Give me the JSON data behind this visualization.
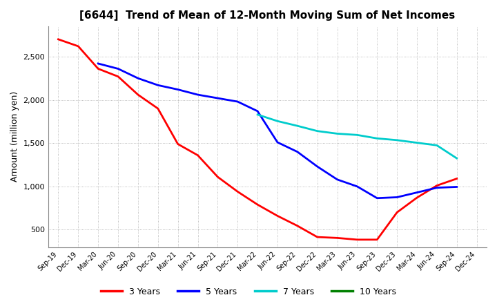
{
  "title": "[6644]  Trend of Mean of 12-Month Moving Sum of Net Incomes",
  "ylabel": "Amount (million yen)",
  "ylim": [
    300,
    2850
  ],
  "yticks": [
    500,
    1000,
    1500,
    2000,
    2500
  ],
  "background_color": "#ffffff",
  "grid_color": "#aaaaaa",
  "x_labels": [
    "Sep-19",
    "Dec-19",
    "Mar-20",
    "Jun-20",
    "Sep-20",
    "Dec-20",
    "Mar-21",
    "Jun-21",
    "Sep-21",
    "Dec-21",
    "Mar-22",
    "Jun-22",
    "Sep-22",
    "Dec-22",
    "Mar-23",
    "Jun-23",
    "Sep-23",
    "Dec-23",
    "Mar-24",
    "Jun-24",
    "Sep-24",
    "Dec-24"
  ],
  "series": {
    "3 Years": {
      "color": "#ff0000",
      "data_x": [
        0,
        1,
        2,
        3,
        4,
        5,
        6,
        7,
        8,
        9,
        10,
        11,
        12,
        13,
        14,
        15,
        16,
        17,
        18,
        19,
        20
      ],
      "data_y": [
        2700,
        2620,
        2360,
        2270,
        2060,
        1900,
        1490,
        1360,
        1110,
        940,
        790,
        660,
        545,
        415,
        405,
        385,
        385,
        700,
        870,
        1010,
        1090
      ]
    },
    "5 Years": {
      "color": "#0000ff",
      "data_x": [
        2,
        3,
        4,
        5,
        6,
        7,
        8,
        9,
        10,
        11,
        12,
        13,
        14,
        15,
        16,
        17,
        18,
        19,
        20
      ],
      "data_y": [
        2420,
        2360,
        2250,
        2170,
        2120,
        2060,
        2020,
        1980,
        1870,
        1510,
        1400,
        1230,
        1080,
        1000,
        865,
        875,
        930,
        985,
        995
      ]
    },
    "7 Years": {
      "color": "#00cccc",
      "data_x": [
        10,
        11,
        12,
        13,
        14,
        15,
        16,
        17,
        18,
        19,
        20
      ],
      "data_y": [
        1830,
        1755,
        1700,
        1640,
        1610,
        1595,
        1555,
        1535,
        1505,
        1475,
        1325
      ]
    },
    "10 Years": {
      "color": "#008000",
      "data_x": [],
      "data_y": []
    }
  },
  "legend_entries": [
    "3 Years",
    "5 Years",
    "7 Years",
    "10 Years"
  ],
  "legend_colors": [
    "#ff0000",
    "#0000ff",
    "#00cccc",
    "#008000"
  ]
}
